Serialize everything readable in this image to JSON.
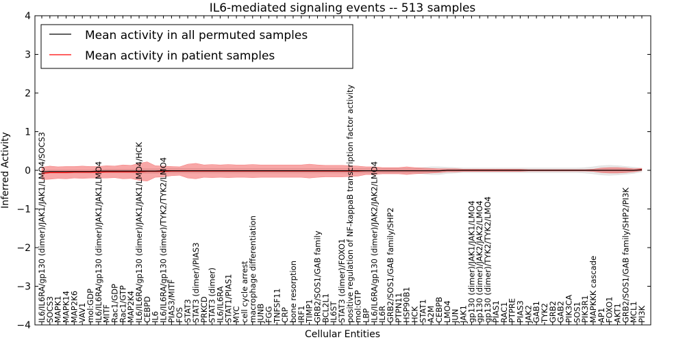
{
  "chart_data": {
    "type": "line",
    "title": "IL6-mediated signaling events -- 513 samples",
    "xlabel": "Cellular Entities",
    "ylabel": "Inferred Activity",
    "ylim": [
      -4,
      4
    ],
    "yticks": [
      -4,
      -3,
      -2,
      -1,
      0,
      1,
      2,
      3,
      4
    ],
    "legend_position": "top-left",
    "categories": [
      "IL6/IL6RA/gp130 (dimer)/JAK1/JAK1/LMO4/SOCS3",
      "SOCS3",
      "MAPK1",
      "MAPK14",
      "MAP2K6",
      "VAV1",
      "mol:GDP",
      "IL6/IL6RA/gp130 (dimer)/JAK1/JAK1/LMO4",
      "MITF",
      "Rac1/GDP",
      "Rac1/GTP",
      "MAP2K4",
      "IL6/IL6RA/gp130 (dimer)/JAK1/JAK1/LMO4/HCK",
      "CEBPD",
      "IL6",
      "IL6/IL6RA/gp130 (dimer)/TYK2/TYK2/LMO4",
      "PIAS3/MITF",
      "FOS",
      "STAT3",
      "STAT3 (dimer)/PIAS3",
      "PRKCD",
      "STAT3 (dimer)",
      "IL6/IL6RA",
      "STAT1/PIAS1",
      "MYC",
      "cell cycle arrest",
      "macrophage differentiation",
      "JUNB",
      "FGG",
      "TNFSF11",
      "CRP",
      "bone resorption",
      "IRF1",
      "TIMP1",
      "GRB2/SOS1/GAB family",
      "BCL2L1",
      "IL6ST",
      "STAT3 (dimer)/FOXO1",
      "positive regulation of NF-kappaB transcription factor activity",
      "mol:GTP",
      "LBP",
      "IL6/IL6RA/gp130 (dimer)/JAK2/JAK2/LMO4",
      "IL6R",
      "GRB2/SOS1/GAB family/SHP2",
      "PTPN11",
      "HSP90B1",
      "HCK",
      "STAT1",
      "A2M",
      "CEBPB",
      "LMO4",
      "JUN",
      "JAK1",
      "gp130 (dimer)/JAK1/JAK1/LMO4",
      "gp130 (dimer)/JAK2/JAK2/LMO4",
      "gp130 (dimer)/TYK2/TYK2/LMO4",
      "PIAS1",
      "RAC1",
      "PTPRE",
      "PIAS3",
      "JAK2",
      "GAB1",
      "TYK2",
      "GRB2",
      "GAB2",
      "PIK3CA",
      "SOS1",
      "PIK3R1",
      "MAPKKK cascade",
      "AP1",
      "FOXO1",
      "AKT1",
      "GRB2/SOS1/GAB family/SHP2/PI3K",
      "MCL1",
      "PI3K"
    ],
    "series": [
      {
        "name": "Mean activity in all permuted samples",
        "color": "#000000",
        "values": [
          -0.04,
          -0.03,
          -0.03,
          -0.03,
          -0.03,
          -0.03,
          -0.03,
          -0.02,
          -0.02,
          -0.02,
          -0.02,
          -0.02,
          -0.02,
          -0.02,
          -0.02,
          -0.01,
          -0.01,
          -0.01,
          -0.01,
          -0.01,
          -0.01,
          -0.01,
          -0.01,
          -0.01,
          -0.01,
          -0.01,
          -0.01,
          -0.01,
          -0.01,
          -0.01,
          -0.01,
          -0.01,
          -0.01,
          -0.01,
          -0.01,
          -0.01,
          -0.01,
          -0.01,
          -0.01,
          -0.01,
          -0.01,
          -0.01,
          -0.01,
          -0.01,
          -0.01,
          -0.01,
          -0.01,
          -0.01,
          -0.01,
          -0.01,
          0.0,
          0.0,
          0.0,
          0.0,
          0.0,
          0.0,
          0.0,
          0.0,
          0.0,
          0.0,
          0.0,
          0.0,
          0.0,
          0.0,
          0.0,
          0.0,
          0.0,
          0.0,
          0.0,
          0.0,
          0.0,
          0.0,
          0.0,
          0.0,
          0.01
        ],
        "band": [
          0.04,
          0.04,
          0.04,
          0.04,
          0.04,
          0.04,
          0.04,
          0.04,
          0.05,
          0.05,
          0.05,
          0.05,
          0.06,
          0.06,
          0.06,
          0.06,
          0.06,
          0.06,
          0.06,
          0.06,
          0.06,
          0.06,
          0.06,
          0.06,
          0.06,
          0.06,
          0.06,
          0.06,
          0.06,
          0.06,
          0.06,
          0.06,
          0.06,
          0.06,
          0.06,
          0.06,
          0.06,
          0.06,
          0.06,
          0.06,
          0.06,
          0.06,
          0.06,
          0.06,
          0.06,
          0.06,
          0.06,
          0.08,
          0.1,
          0.1,
          0.08,
          0.07,
          0.06,
          0.06,
          0.06,
          0.06,
          0.06,
          0.06,
          0.06,
          0.06,
          0.06,
          0.06,
          0.06,
          0.06,
          0.06,
          0.06,
          0.06,
          0.07,
          0.09,
          0.12,
          0.13,
          0.12,
          0.1,
          0.08,
          0.05
        ]
      },
      {
        "name": "Mean activity in patient samples",
        "color": "#ff0000",
        "values": [
          -0.08,
          -0.06,
          -0.06,
          -0.06,
          -0.05,
          -0.05,
          -0.05,
          -0.05,
          -0.04,
          -0.04,
          -0.04,
          -0.04,
          -0.04,
          -0.03,
          -0.03,
          -0.03,
          -0.02,
          -0.02,
          -0.02,
          -0.02,
          -0.02,
          -0.02,
          -0.02,
          -0.02,
          -0.02,
          -0.02,
          -0.02,
          -0.02,
          -0.02,
          -0.02,
          -0.02,
          -0.02,
          -0.02,
          -0.02,
          -0.02,
          -0.02,
          -0.02,
          -0.02,
          -0.02,
          -0.02,
          -0.01,
          -0.01,
          -0.01,
          -0.01,
          -0.01,
          -0.01,
          -0.01,
          -0.01,
          -0.01,
          -0.01,
          0.0,
          0.0,
          0.0,
          0.0,
          0.0,
          0.0,
          0.0,
          0.0,
          0.0,
          0.0,
          0.0,
          0.0,
          0.0,
          0.0,
          0.0,
          0.0,
          0.0,
          0.0,
          0.0,
          0.0,
          0.0,
          0.0,
          0.0,
          0.0,
          0.02
        ],
        "band": [
          0.16,
          0.17,
          0.15,
          0.16,
          0.15,
          0.16,
          0.15,
          0.15,
          0.16,
          0.15,
          0.18,
          0.17,
          0.22,
          0.25,
          0.15,
          0.14,
          0.12,
          0.11,
          0.18,
          0.2,
          0.16,
          0.17,
          0.16,
          0.17,
          0.16,
          0.16,
          0.17,
          0.16,
          0.16,
          0.16,
          0.16,
          0.16,
          0.16,
          0.18,
          0.16,
          0.15,
          0.15,
          0.15,
          0.14,
          0.13,
          0.1,
          0.1,
          0.08,
          0.08,
          0.08,
          0.1,
          0.08,
          0.07,
          0.06,
          0.05,
          0.04,
          0.04,
          0.03,
          0.03,
          0.03,
          0.03,
          0.03,
          0.03,
          0.03,
          0.03,
          0.02,
          0.02,
          0.02,
          0.02,
          0.02,
          0.02,
          0.02,
          0.02,
          0.03,
          0.06,
          0.07,
          0.07,
          0.06,
          0.04,
          0.03
        ]
      }
    ]
  }
}
